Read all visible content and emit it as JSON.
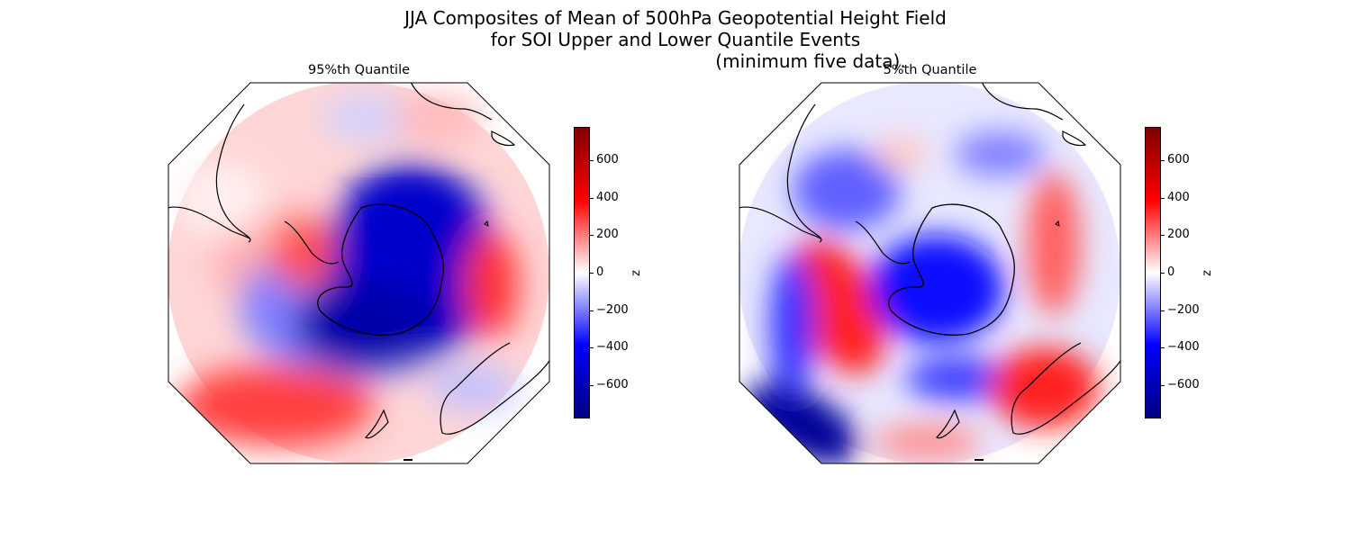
{
  "title": {
    "line1": "JJA Composites of Mean of 500hPa Geopotential Height Field",
    "line2": "for SOI Upper and Lower Quantile Events",
    "line3": "(minimum five data)."
  },
  "panels": [
    {
      "title": "95%th Quantile"
    },
    {
      "title": "5%th Quantile"
    }
  ],
  "colorbar": {
    "label": "z",
    "ticks": [
      "600",
      "400",
      "200",
      "0",
      "−200",
      "−400",
      "−600"
    ],
    "range": [
      -780,
      780
    ],
    "colormap": "seismic",
    "colors": [
      "#000080",
      "#0000ff",
      "#ffffff",
      "#ff0000",
      "#800000"
    ]
  }
}
